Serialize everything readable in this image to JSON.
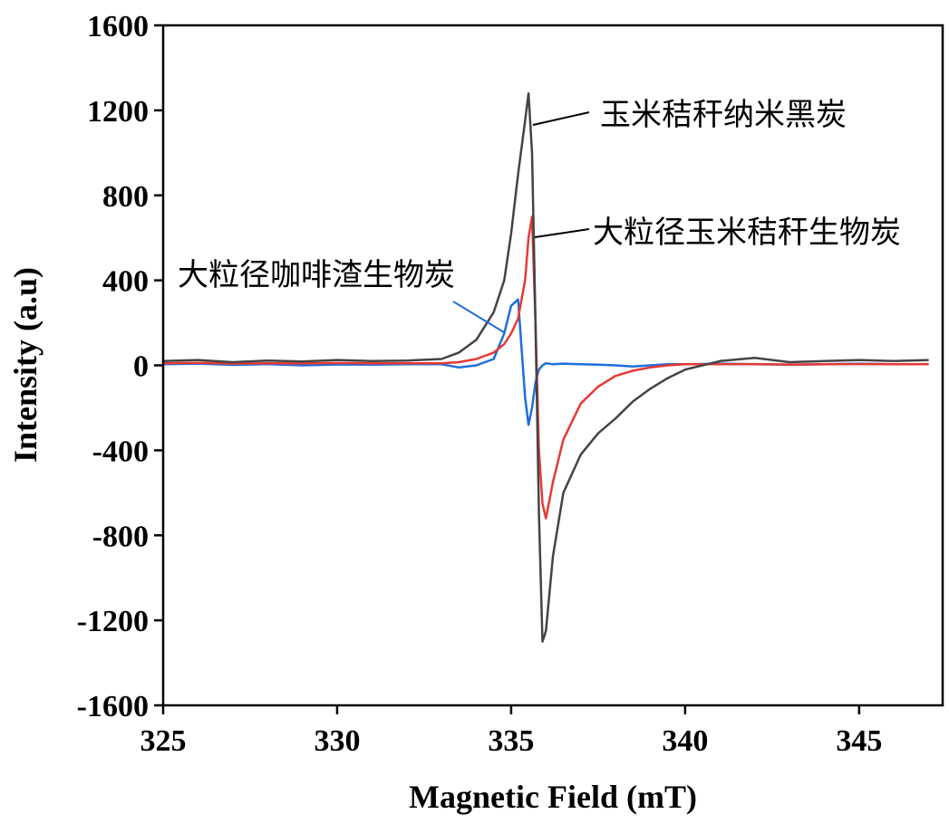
{
  "chart_data": {
    "type": "line",
    "x_label": "Magnetic Field (mT)",
    "y_label": "Intensity (a.u)",
    "x": [
      325,
      326,
      327,
      328,
      329,
      330,
      331,
      332,
      333,
      333.5,
      334,
      334.5,
      334.8,
      335,
      335.2,
      335.4,
      335.5,
      335.6,
      335.7,
      335.8,
      335.9,
      336,
      336.2,
      336.5,
      337,
      337.5,
      338,
      338.5,
      339,
      339.5,
      340,
      341,
      342,
      343,
      344,
      345,
      346,
      347
    ],
    "series": [
      {
        "name": "玉米秸秆纳米黑炭",
        "color": "#444444",
        "values": [
          20,
          25,
          15,
          22,
          18,
          25,
          20,
          22,
          30,
          60,
          120,
          250,
          400,
          620,
          900,
          1150,
          1280,
          1000,
          200,
          -700,
          -1300,
          -1250,
          -900,
          -600,
          -420,
          -320,
          -250,
          -170,
          -110,
          -60,
          -20,
          20,
          35,
          15,
          20,
          25,
          20,
          25
        ]
      },
      {
        "name": "大粒径玉米秸秆生物炭",
        "color": "#e53935",
        "values": [
          10,
          12,
          8,
          10,
          9,
          11,
          10,
          10,
          10,
          15,
          30,
          60,
          100,
          150,
          220,
          400,
          600,
          700,
          200,
          -400,
          -650,
          -720,
          -550,
          -350,
          -180,
          -100,
          -50,
          -25,
          -10,
          0,
          5,
          5,
          6,
          4,
          5,
          6,
          5,
          5
        ]
      },
      {
        "name": "大粒径咖啡渣生物炭",
        "color": "#1e6fd9",
        "values": [
          5,
          8,
          2,
          6,
          0,
          4,
          3,
          5,
          5,
          -10,
          0,
          30,
          150,
          280,
          310,
          -150,
          -280,
          -200,
          -80,
          -20,
          0,
          10,
          5,
          8,
          5,
          3,
          0,
          -5,
          0,
          5,
          5,
          8,
          5,
          3,
          5,
          8,
          5,
          5
        ]
      }
    ],
    "xlim": [
      325,
      347.4
    ],
    "ylim": [
      -1600,
      1600
    ],
    "xticks": [
      325,
      330,
      335,
      340,
      345
    ],
    "yticks": [
      -1600,
      -1200,
      -800,
      -400,
      0,
      400,
      800,
      1200,
      1600
    ],
    "grid": false
  }
}
